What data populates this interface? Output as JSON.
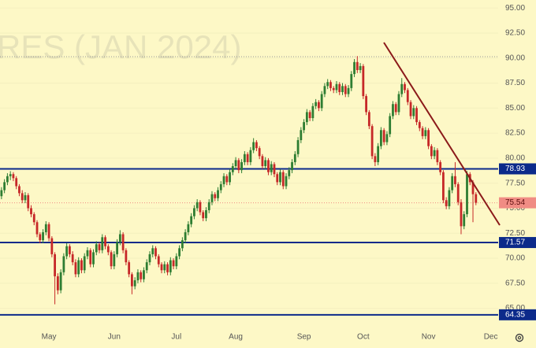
{
  "chart_data": {
    "type": "candlestick",
    "watermark": "RES (JAN 2024)",
    "categories": [
      null,
      null,
      null,
      null,
      null,
      null,
      null,
      null,
      null,
      null,
      null,
      null,
      null,
      null,
      null,
      null,
      "May",
      null,
      null,
      null,
      null,
      null,
      null,
      null,
      null,
      null,
      null,
      null,
      null,
      null,
      null,
      null,
      null,
      null,
      null,
      null,
      null,
      null,
      "Jun",
      null,
      null,
      null,
      null,
      null,
      null,
      null,
      null,
      null,
      null,
      null,
      null,
      null,
      null,
      null,
      null,
      null,
      null,
      null,
      null,
      "Jul",
      null,
      null,
      null,
      null,
      null,
      null,
      null,
      null,
      null,
      null,
      null,
      null,
      null,
      null,
      null,
      null,
      null,
      null,
      null,
      "Aug",
      null,
      null,
      null,
      null,
      null,
      null,
      null,
      null,
      null,
      null,
      null,
      null,
      null,
      null,
      null,
      null,
      null,
      null,
      null,
      null,
      null,
      null,
      "Sep",
      null,
      null,
      null,
      null,
      null,
      null,
      null,
      null,
      null,
      null,
      null,
      null,
      null,
      null,
      null,
      null,
      null,
      null,
      null,
      "Oct",
      null,
      null,
      null,
      null,
      null,
      null,
      null,
      null,
      null,
      null,
      null,
      null,
      null,
      null,
      null,
      null,
      null,
      null,
      null,
      null,
      null,
      "Nov",
      null,
      null,
      null,
      null,
      null,
      null,
      null,
      null,
      null,
      null,
      null,
      null,
      null,
      null,
      null,
      null,
      null,
      null,
      null,
      null,
      "Dec",
      null,
      null
    ],
    "ohlc": [
      [
        76.2,
        77.1,
        75.9,
        76.8
      ],
      [
        76.8,
        77.9,
        76.5,
        77.6
      ],
      [
        77.6,
        78.5,
        77.3,
        78.2
      ],
      [
        78.2,
        78.7,
        77.8,
        78.4
      ],
      [
        78.4,
        78.6,
        77.7,
        78.0
      ],
      [
        78.0,
        78.2,
        76.9,
        77.2
      ],
      [
        77.2,
        77.4,
        76.2,
        76.5
      ],
      [
        76.5,
        76.8,
        75.5,
        75.8
      ],
      [
        75.8,
        76.6,
        75.5,
        76.3
      ],
      [
        76.3,
        76.5,
        74.7,
        75.0
      ],
      [
        75.0,
        75.3,
        74.1,
        74.4
      ],
      [
        74.4,
        74.6,
        73.3,
        73.6
      ],
      [
        73.6,
        73.8,
        72.1,
        72.4
      ],
      [
        72.4,
        72.6,
        71.5,
        71.8
      ],
      [
        71.8,
        72.9,
        71.5,
        72.6
      ],
      [
        72.6,
        73.7,
        72.3,
        73.4
      ],
      [
        73.4,
        73.6,
        71.7,
        72.0
      ],
      [
        72.0,
        72.2,
        70.1,
        70.4
      ],
      [
        70.4,
        70.6,
        65.4,
        68.2
      ],
      [
        68.2,
        68.5,
        66.4,
        66.8
      ],
      [
        66.8,
        68.9,
        66.5,
        68.6
      ],
      [
        68.6,
        70.5,
        68.3,
        70.2
      ],
      [
        70.2,
        71.5,
        69.9,
        71.2
      ],
      [
        71.2,
        71.4,
        70.1,
        70.4
      ],
      [
        70.4,
        70.7,
        69.3,
        69.6
      ],
      [
        69.6,
        69.9,
        68.1,
        68.4
      ],
      [
        68.4,
        70.1,
        68.1,
        69.8
      ],
      [
        69.8,
        70.0,
        68.5,
        68.8
      ],
      [
        68.8,
        70.5,
        68.5,
        70.2
      ],
      [
        70.2,
        71.1,
        69.9,
        70.8
      ],
      [
        70.8,
        71.0,
        69.1,
        69.4
      ],
      [
        69.4,
        70.9,
        69.1,
        70.6
      ],
      [
        70.6,
        71.7,
        70.3,
        71.4
      ],
      [
        71.4,
        71.6,
        70.5,
        70.8
      ],
      [
        70.8,
        72.4,
        70.5,
        72.1
      ],
      [
        72.1,
        72.3,
        70.9,
        71.2
      ],
      [
        71.2,
        71.4,
        70.3,
        70.6
      ],
      [
        70.6,
        70.8,
        68.9,
        69.2
      ],
      [
        69.2,
        70.7,
        68.9,
        70.4
      ],
      [
        70.4,
        71.9,
        70.1,
        71.6
      ],
      [
        71.6,
        72.8,
        71.3,
        72.4
      ],
      [
        72.4,
        72.6,
        70.5,
        70.8
      ],
      [
        70.8,
        71.0,
        69.3,
        69.6
      ],
      [
        69.6,
        69.8,
        68.1,
        68.4
      ],
      [
        68.4,
        68.6,
        66.4,
        67.2
      ],
      [
        67.2,
        68.1,
        66.9,
        67.8
      ],
      [
        67.8,
        68.9,
        67.5,
        68.6
      ],
      [
        68.6,
        68.8,
        67.6,
        67.9
      ],
      [
        67.9,
        69.1,
        67.6,
        68.8
      ],
      [
        68.8,
        69.9,
        68.5,
        69.6
      ],
      [
        69.6,
        70.7,
        69.3,
        70.4
      ],
      [
        70.4,
        71.3,
        70.1,
        71.0
      ],
      [
        71.0,
        71.2,
        69.9,
        70.2
      ],
      [
        70.2,
        70.4,
        69.1,
        69.4
      ],
      [
        69.4,
        69.6,
        68.5,
        68.8
      ],
      [
        68.8,
        69.7,
        68.5,
        69.4
      ],
      [
        69.4,
        69.6,
        68.3,
        68.6
      ],
      [
        68.6,
        70.1,
        68.3,
        69.8
      ],
      [
        69.8,
        70.0,
        68.9,
        69.2
      ],
      [
        69.2,
        70.5,
        68.9,
        70.2
      ],
      [
        70.2,
        71.3,
        69.9,
        71.0
      ],
      [
        71.0,
        72.1,
        70.7,
        71.8
      ],
      [
        71.8,
        72.9,
        71.5,
        72.6
      ],
      [
        72.6,
        73.7,
        72.3,
        73.4
      ],
      [
        73.4,
        74.5,
        73.1,
        74.2
      ],
      [
        74.2,
        75.3,
        73.9,
        75.0
      ],
      [
        75.0,
        75.9,
        74.7,
        75.6
      ],
      [
        75.6,
        75.8,
        74.3,
        74.6
      ],
      [
        74.6,
        74.8,
        73.7,
        74.0
      ],
      [
        74.0,
        75.1,
        73.7,
        74.8
      ],
      [
        74.8,
        75.9,
        74.5,
        75.6
      ],
      [
        75.6,
        76.7,
        75.3,
        76.4
      ],
      [
        76.4,
        76.6,
        75.7,
        76.0
      ],
      [
        76.0,
        77.1,
        75.7,
        76.8
      ],
      [
        76.8,
        77.7,
        76.5,
        77.4
      ],
      [
        77.4,
        78.5,
        77.1,
        78.2
      ],
      [
        78.2,
        78.4,
        77.3,
        77.6
      ],
      [
        77.6,
        78.9,
        77.3,
        78.6
      ],
      [
        78.6,
        79.5,
        78.3,
        79.2
      ],
      [
        79.2,
        80.1,
        78.9,
        79.8
      ],
      [
        79.8,
        80.0,
        78.5,
        78.8
      ],
      [
        78.8,
        79.9,
        78.5,
        79.6
      ],
      [
        79.6,
        80.7,
        79.3,
        80.4
      ],
      [
        80.4,
        80.6,
        79.3,
        79.6
      ],
      [
        79.6,
        81.1,
        79.3,
        80.8
      ],
      [
        80.8,
        82.0,
        80.5,
        81.6
      ],
      [
        81.6,
        81.8,
        80.7,
        81.0
      ],
      [
        81.0,
        81.2,
        79.9,
        80.2
      ],
      [
        80.2,
        80.4,
        78.9,
        79.2
      ],
      [
        79.2,
        80.1,
        78.9,
        79.8
      ],
      [
        79.8,
        80.0,
        78.3,
        78.6
      ],
      [
        78.6,
        79.7,
        78.3,
        79.4
      ],
      [
        79.4,
        79.6,
        78.1,
        78.4
      ],
      [
        78.4,
        78.6,
        77.3,
        77.6
      ],
      [
        77.6,
        78.9,
        77.3,
        78.6
      ],
      [
        78.6,
        78.8,
        76.9,
        77.2
      ],
      [
        77.2,
        78.5,
        76.9,
        78.2
      ],
      [
        78.2,
        79.1,
        77.9,
        78.8
      ],
      [
        78.8,
        79.9,
        78.5,
        79.6
      ],
      [
        79.6,
        80.7,
        79.3,
        80.4
      ],
      [
        80.4,
        82.1,
        80.1,
        81.8
      ],
      [
        81.8,
        83.1,
        81.5,
        82.8
      ],
      [
        82.8,
        83.9,
        82.5,
        83.6
      ],
      [
        83.6,
        84.9,
        83.3,
        84.6
      ],
      [
        84.6,
        84.8,
        83.7,
        84.0
      ],
      [
        84.0,
        85.5,
        83.7,
        85.2
      ],
      [
        85.2,
        85.9,
        84.9,
        85.6
      ],
      [
        85.6,
        85.8,
        84.7,
        85.0
      ],
      [
        85.0,
        86.7,
        84.7,
        86.4
      ],
      [
        86.4,
        87.5,
        86.1,
        87.2
      ],
      [
        87.2,
        87.9,
        86.9,
        87.6
      ],
      [
        87.6,
        87.8,
        86.7,
        87.0
      ],
      [
        87.0,
        87.2,
        86.5,
        86.8
      ],
      [
        86.8,
        87.7,
        86.5,
        87.4
      ],
      [
        87.4,
        87.6,
        86.3,
        86.6
      ],
      [
        86.6,
        87.5,
        86.3,
        87.2
      ],
      [
        87.2,
        87.4,
        86.1,
        86.4
      ],
      [
        86.4,
        87.3,
        86.1,
        87.0
      ],
      [
        87.0,
        88.7,
        86.7,
        88.4
      ],
      [
        88.4,
        89.9,
        88.1,
        89.6
      ],
      [
        89.6,
        90.2,
        88.5,
        88.8
      ],
      [
        88.8,
        89.5,
        88.5,
        89.2
      ],
      [
        89.2,
        89.4,
        85.9,
        86.2
      ],
      [
        86.2,
        86.4,
        84.3,
        84.6
      ],
      [
        84.6,
        84.8,
        82.9,
        83.2
      ],
      [
        83.2,
        83.4,
        79.9,
        80.2
      ],
      [
        80.2,
        80.5,
        79.2,
        79.6
      ],
      [
        79.6,
        81.5,
        79.3,
        81.2
      ],
      [
        81.2,
        83.1,
        80.9,
        82.8
      ],
      [
        82.8,
        83.0,
        81.3,
        81.6
      ],
      [
        81.6,
        82.7,
        81.3,
        82.4
      ],
      [
        82.4,
        84.5,
        82.1,
        84.2
      ],
      [
        84.2,
        85.7,
        83.9,
        85.4
      ],
      [
        85.4,
        85.6,
        84.3,
        84.6
      ],
      [
        84.6,
        86.7,
        84.3,
        86.4
      ],
      [
        86.4,
        88.0,
        86.1,
        87.4
      ],
      [
        87.4,
        87.6,
        86.5,
        86.8
      ],
      [
        86.8,
        87.0,
        85.3,
        85.6
      ],
      [
        85.6,
        85.8,
        83.9,
        84.2
      ],
      [
        84.2,
        85.3,
        83.9,
        85.0
      ],
      [
        85.0,
        85.2,
        83.3,
        83.6
      ],
      [
        83.6,
        83.8,
        82.7,
        83.0
      ],
      [
        83.0,
        83.2,
        81.9,
        82.2
      ],
      [
        82.2,
        83.1,
        81.9,
        82.8
      ],
      [
        82.8,
        83.0,
        80.9,
        81.2
      ],
      [
        81.2,
        81.4,
        79.9,
        80.2
      ],
      [
        80.2,
        81.1,
        79.9,
        80.8
      ],
      [
        80.8,
        81.0,
        79.3,
        79.6
      ],
      [
        79.6,
        79.8,
        78.3,
        78.6
      ],
      [
        78.6,
        78.8,
        75.5,
        75.8
      ],
      [
        75.8,
        76.1,
        74.9,
        75.2
      ],
      [
        75.2,
        77.1,
        74.9,
        76.8
      ],
      [
        76.8,
        78.5,
        76.5,
        78.2
      ],
      [
        78.2,
        79.6,
        77.1,
        77.4
      ],
      [
        77.4,
        77.6,
        75.3,
        75.6
      ],
      [
        75.6,
        75.9,
        72.4,
        73.2
      ],
      [
        73.2,
        74.7,
        72.9,
        74.4
      ],
      [
        74.4,
        78.7,
        74.1,
        78.4
      ],
      [
        78.4,
        78.6,
        77.3,
        77.6
      ],
      [
        77.6,
        77.8,
        73.6,
        76.4
      ],
      [
        76.4,
        76.6,
        75.3,
        75.54
      ],
      null,
      null,
      null,
      null,
      null,
      null,
      null
    ],
    "up_color": "#2e7d32",
    "down_color": "#c62828",
    "ylim": [
      63,
      95.8
    ],
    "yticks": [
      {
        "value": 65,
        "label": "65.00"
      },
      {
        "value": 67.5,
        "label": "67.50"
      },
      {
        "value": 70,
        "label": "70.00"
      },
      {
        "value": 72.5,
        "label": "72.50"
      },
      {
        "value": 75,
        "label": "75.00"
      },
      {
        "value": 77.5,
        "label": "77.50"
      },
      {
        "value": 80,
        "label": "80.00"
      },
      {
        "value": 82.5,
        "label": "82.50"
      },
      {
        "value": 85,
        "label": "85.00"
      },
      {
        "value": 87.5,
        "label": "87.50"
      },
      {
        "value": 90,
        "label": "90.00"
      },
      {
        "value": 92.5,
        "label": "92.50"
      },
      {
        "value": 95,
        "label": "95.00"
      }
    ],
    "levels": [
      78.93,
      71.57,
      64.35
    ],
    "level_color": "#0c2a8a",
    "last_price": 75.54,
    "last_price_color": "#f08c84"
  }
}
